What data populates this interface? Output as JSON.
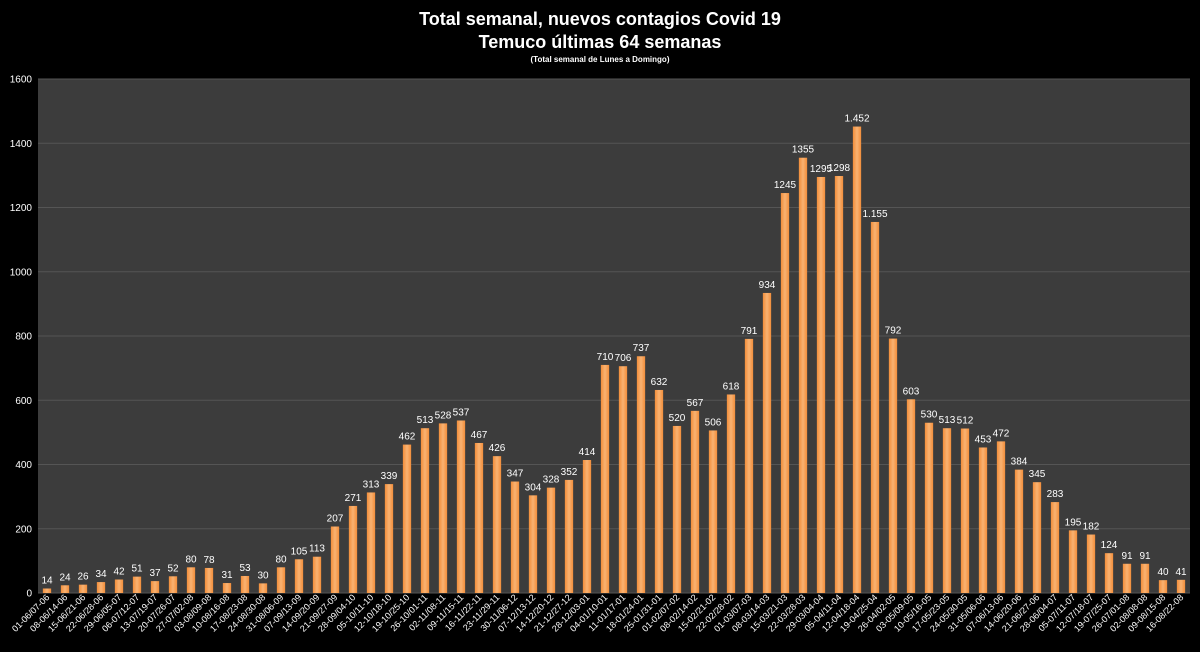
{
  "chart_data": {
    "type": "bar",
    "title": "Total semanal, nuevos contagios Covid 19",
    "subtitle": "Temuco últimas 64 semanas",
    "note": "(Total semanal de Lunes a Domingo)",
    "xlabel": "",
    "ylabel": "",
    "ylim": [
      0,
      1600
    ],
    "yticks": [
      0,
      200,
      400,
      600,
      800,
      1000,
      1200,
      1400,
      1600
    ],
    "grid": true,
    "legend": "none",
    "colors": {
      "bar": "#f28d3a",
      "bar_light": "#f9b372",
      "plot_bg": "#3c3c3c",
      "grid": "#555555",
      "page_bg": "#000000",
      "text": "#ffffff"
    },
    "categories": [
      "01-06/07-06",
      "08-06/14-06",
      "15-06/21-06",
      "22-06/28-06",
      "29-06/05-07",
      "06-07/12-07",
      "13-07/19-07",
      "20-07/26-07",
      "27-07/02-08",
      "03-08/09-08",
      "10-08/16-08",
      "17-08/23-08",
      "24-08/30-08",
      "31-08/06-09",
      "07-09/13-09",
      "14-09/20-09",
      "21-09/27-09",
      "28-09/04-10",
      "05-10/11-10",
      "12-10/18-10",
      "19-10/25-10",
      "26-10/01-11",
      "02-11/08-11",
      "09-11/15-11",
      "16-11/22-11",
      "23-11/29-11",
      "30-11/06-12",
      "07-12/13-12",
      "14-12/20-12",
      "21-12/27-12",
      "28-12/03-01",
      "04-01/10-01",
      "11-01/17-01",
      "18-01/24-01",
      "25-01/31-01",
      "01-02/07-02",
      "08-02/14-02",
      "15-02/21-02",
      "22-02/28-02",
      "01-03/07-03",
      "08-03/14-03",
      "15-03/21-03",
      "22-03/28-03",
      "29-03/04-04",
      "05-04/11-04",
      "12-04/18-04",
      "19-04/25-04",
      "26-04/02-05",
      "03-05/09-05",
      "10-05/16-05",
      "17-05/23-05",
      "24-05/30-05",
      "31-05/06-06",
      "07-06/13-06",
      "14-06/20-06",
      "21-06/27-06",
      "28-06/04-07",
      "05-07/11-07",
      "12-07/18-07",
      "19-07/25-07",
      "26-07/01-08",
      "02-08/08-08",
      "09-08/15-08",
      "16-08/22-08"
    ],
    "values": [
      14,
      24,
      26,
      34,
      42,
      51,
      37,
      52,
      80,
      78,
      31,
      53,
      30,
      80,
      105,
      113,
      207,
      271,
      313,
      339,
      462,
      513,
      528,
      537,
      467,
      426,
      347,
      304,
      328,
      352,
      414,
      710,
      706,
      737,
      632,
      520,
      567,
      506,
      618,
      791,
      934,
      1245,
      1355,
      1295,
      1298,
      1452,
      1155,
      792,
      603,
      530,
      513,
      512,
      453,
      472,
      384,
      345,
      283,
      195,
      182,
      124,
      91,
      91,
      40,
      41
    ],
    "data_labels": [
      "14",
      "24",
      "26",
      "34",
      "42",
      "51",
      "37",
      "52",
      "80",
      "78",
      "31",
      "53",
      "30",
      "80",
      "105",
      "113",
      "207",
      "271",
      "313",
      "339",
      "462",
      "513",
      "528",
      "537",
      "467",
      "426",
      "347",
      "304",
      "328",
      "352",
      "414",
      "710",
      "706",
      "737",
      "632",
      "520",
      "567",
      "506",
      "618",
      "791",
      "934",
      "1245",
      "1355",
      "1295",
      "1298",
      "1.452",
      "1.155",
      "792",
      "603",
      "530",
      "513",
      "512",
      "453",
      "472",
      "384",
      "345",
      "283",
      "195",
      "182",
      "124",
      "91",
      "91",
      "40",
      "41"
    ]
  }
}
